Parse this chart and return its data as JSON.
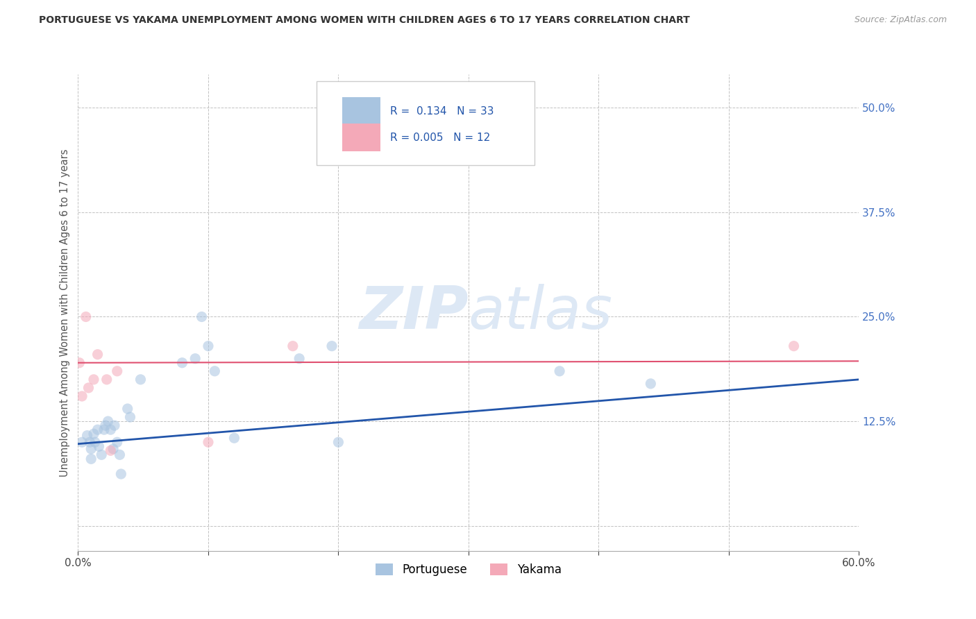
{
  "title": "PORTUGUESE VS YAKAMA UNEMPLOYMENT AMONG WOMEN WITH CHILDREN AGES 6 TO 17 YEARS CORRELATION CHART",
  "source": "Source: ZipAtlas.com",
  "ylabel": "Unemployment Among Women with Children Ages 6 to 17 years",
  "xlim": [
    0.0,
    0.6
  ],
  "ylim": [
    -0.03,
    0.54
  ],
  "xticks": [
    0.0,
    0.1,
    0.2,
    0.3,
    0.4,
    0.5,
    0.6
  ],
  "xticklabels": [
    "0.0%",
    "",
    "",
    "",
    "",
    "",
    "60.0%"
  ],
  "yticks": [
    0.0,
    0.125,
    0.25,
    0.375,
    0.5
  ],
  "yticklabels": [
    "",
    "12.5%",
    "25.0%",
    "37.5%",
    "50.0%"
  ],
  "ytick_color": "#4472c4",
  "grid_color": "#bbbbbb",
  "background_color": "#ffffff",
  "portuguese_color": "#a8c4e0",
  "yakama_color": "#f4a9b8",
  "portuguese_line_color": "#2255aa",
  "yakama_line_color": "#e05070",
  "portuguese_R": "0.134",
  "portuguese_N": "33",
  "yakama_R": "0.005",
  "yakama_N": "12",
  "legend_label_portuguese": "Portuguese",
  "legend_label_yakama": "Yakama",
  "portuguese_x": [
    0.003,
    0.007,
    0.009,
    0.01,
    0.01,
    0.012,
    0.013,
    0.015,
    0.016,
    0.018,
    0.02,
    0.021,
    0.023,
    0.025,
    0.027,
    0.028,
    0.03,
    0.032,
    0.033,
    0.038,
    0.04,
    0.048,
    0.08,
    0.09,
    0.095,
    0.1,
    0.105,
    0.12,
    0.17,
    0.195,
    0.2,
    0.37,
    0.44
  ],
  "portuguese_y": [
    0.1,
    0.108,
    0.1,
    0.092,
    0.08,
    0.11,
    0.1,
    0.115,
    0.095,
    0.085,
    0.115,
    0.12,
    0.125,
    0.115,
    0.092,
    0.12,
    0.1,
    0.085,
    0.062,
    0.14,
    0.13,
    0.175,
    0.195,
    0.2,
    0.25,
    0.215,
    0.185,
    0.105,
    0.2,
    0.215,
    0.1,
    0.185,
    0.17
  ],
  "yakama_x": [
    0.001,
    0.003,
    0.006,
    0.008,
    0.012,
    0.015,
    0.022,
    0.025,
    0.03,
    0.1,
    0.165,
    0.55
  ],
  "yakama_y": [
    0.195,
    0.155,
    0.25,
    0.165,
    0.175,
    0.205,
    0.175,
    0.09,
    0.185,
    0.1,
    0.215,
    0.215
  ],
  "portuguese_trend_x": [
    0.0,
    0.6
  ],
  "portuguese_trend_y": [
    0.098,
    0.175
  ],
  "yakama_trend_x": [
    0.0,
    0.6
  ],
  "yakama_trend_y": [
    0.195,
    0.197
  ],
  "marker_size": 120,
  "marker_alpha": 0.55,
  "figsize": [
    14.06,
    8.92
  ],
  "dpi": 100
}
